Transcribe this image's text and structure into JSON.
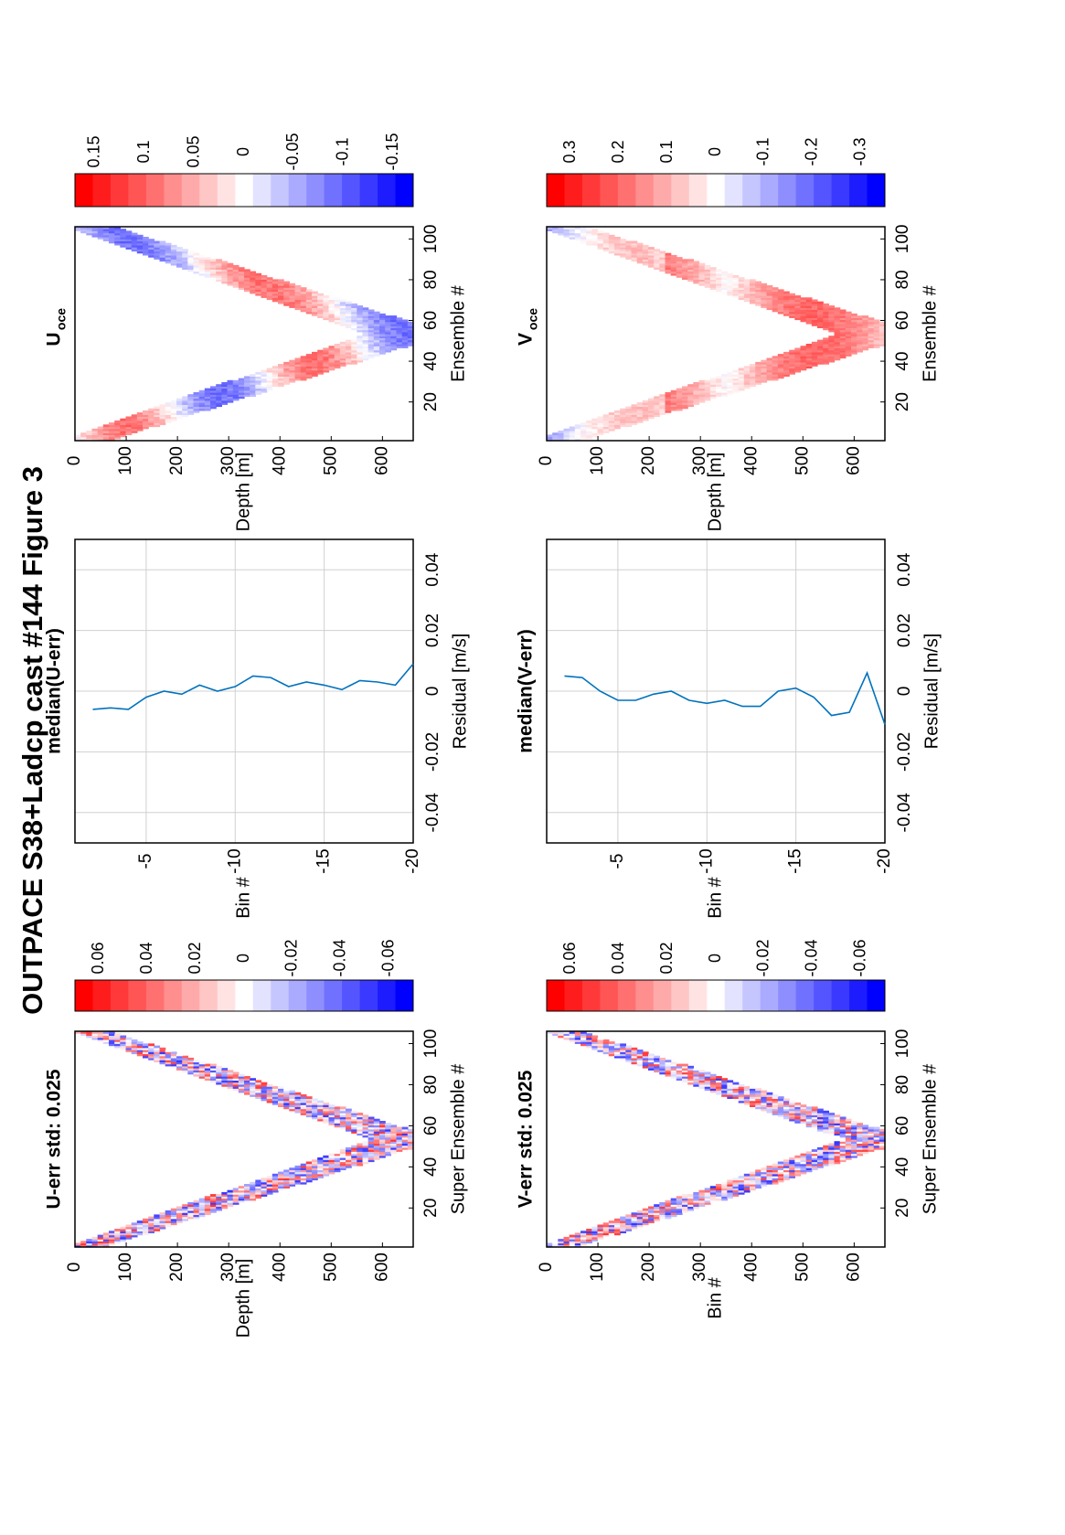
{
  "figure": {
    "title": "OUTPACE S38+Ladcp cast #144  Figure 3"
  },
  "chart_data": [
    {
      "id": "u-err",
      "type": "heatmap",
      "title": "U-err std: 0.025",
      "xlabel": "Super Ensemble #",
      "ylabel": "Depth [m]",
      "xlim": [
        1,
        106
      ],
      "ylim": [
        0,
        660
      ],
      "xticks": [
        "20",
        "40",
        "60",
        "80",
        "100"
      ],
      "yticks": [
        "0",
        "100",
        "200",
        "300",
        "400",
        "500",
        "600"
      ],
      "colorbar": {
        "range": [
          -0.07,
          0.07
        ],
        "ticks": [
          "0.06",
          "0.04",
          "0.02",
          "0",
          "-0.02",
          "-0.04",
          "-0.06"
        ],
        "colormap": "red-white-blue"
      },
      "profile": {
        "turn_ensemble": 53,
        "max_depth": 640,
        "band_width": 130
      }
    },
    {
      "id": "median-u-err",
      "type": "line",
      "title": "median(U-err)",
      "xlabel": "Bin #",
      "ylabel": "Residual [m/s]",
      "xlim": [
        -1,
        -20
      ],
      "ylim": [
        -0.05,
        0.05
      ],
      "xticks": [
        "-5",
        "-10",
        "-15",
        "-20"
      ],
      "yticks": [
        "-0.04",
        "-0.02",
        "0",
        "0.02",
        "0.04"
      ],
      "grid": true,
      "color": "#0072bd",
      "x": [
        -2,
        -3,
        -4,
        -5,
        -6,
        -7,
        -8,
        -9,
        -10,
        -11,
        -12,
        -13,
        -14,
        -15,
        -16,
        -17,
        -18,
        -19,
        -20
      ],
      "y": [
        -0.006,
        -0.0055,
        -0.006,
        -0.002,
        0,
        -0.001,
        0.002,
        0,
        0.0015,
        0.005,
        0.0045,
        0.0015,
        0.003,
        0.002,
        0.0005,
        0.0035,
        0.003,
        0.002,
        0.009
      ]
    },
    {
      "id": "u-oce",
      "type": "heatmap",
      "title": "U",
      "title_subscript": "oce",
      "xlabel": "Ensemble #",
      "ylabel": "Depth [m]",
      "xlim": [
        1,
        106
      ],
      "ylim": [
        0,
        660
      ],
      "xticks": [
        "20",
        "40",
        "60",
        "80",
        "100"
      ],
      "yticks": [
        "0",
        "100",
        "200",
        "300",
        "400",
        "500",
        "600"
      ],
      "colorbar": {
        "range": [
          -0.17,
          0.17
        ],
        "ticks": [
          "0.15",
          "0.1",
          "0.05",
          "0",
          "-0.05",
          "-0.1",
          "-0.15"
        ],
        "colormap": "red-white-blue"
      },
      "profile": {
        "turn_ensemble": 53,
        "max_depth": 640,
        "band_width": 160
      }
    },
    {
      "id": "v-err",
      "type": "heatmap",
      "title": "V-err std: 0.025",
      "xlabel": "Super Ensemble #",
      "ylabel": "Bin #",
      "xlim": [
        1,
        106
      ],
      "ylim": [
        0,
        660
      ],
      "xticks": [
        "20",
        "40",
        "60",
        "80",
        "100"
      ],
      "yticks": [
        "0",
        "100",
        "200",
        "300",
        "400",
        "500",
        "600"
      ],
      "colorbar": {
        "range": [
          -0.07,
          0.07
        ],
        "ticks": [
          "0.06",
          "0.04",
          "0.02",
          "0",
          "-0.02",
          "-0.04",
          "-0.06"
        ],
        "colormap": "red-white-blue"
      },
      "profile": {
        "turn_ensemble": 53,
        "max_depth": 640,
        "band_width": 130
      }
    },
    {
      "id": "median-v-err",
      "type": "line",
      "title": "median(V-err)",
      "xlabel": "Bin #",
      "ylabel": "Residual [m/s]",
      "xlim": [
        -1,
        -20
      ],
      "ylim": [
        -0.05,
        0.05
      ],
      "xticks": [
        "-5",
        "-10",
        "-15",
        "-20"
      ],
      "yticks": [
        "-0.04",
        "-0.02",
        "0",
        "0.02",
        "0.04"
      ],
      "grid": true,
      "color": "#0072bd",
      "x": [
        -2,
        -3,
        -4,
        -5,
        -6,
        -7,
        -8,
        -9,
        -10,
        -11,
        -12,
        -13,
        -14,
        -15,
        -16,
        -17,
        -18,
        -19,
        -20
      ],
      "y": [
        0.005,
        0.0045,
        0,
        -0.003,
        -0.003,
        -0.001,
        0,
        -0.003,
        -0.004,
        -0.003,
        -0.005,
        -0.005,
        0,
        0.001,
        -0.002,
        -0.008,
        -0.007,
        0.006,
        -0.011
      ]
    },
    {
      "id": "v-oce",
      "type": "heatmap",
      "title": "V",
      "title_subscript": "oce",
      "xlabel": "Ensemble #",
      "ylabel": "Depth [m]",
      "xlim": [
        1,
        106
      ],
      "ylim": [
        0,
        660
      ],
      "xticks": [
        "20",
        "40",
        "60",
        "80",
        "100"
      ],
      "yticks": [
        "0",
        "100",
        "200",
        "300",
        "400",
        "500",
        "600"
      ],
      "colorbar": {
        "range": [
          -0.35,
          0.35
        ],
        "ticks": [
          "0.3",
          "0.2",
          "0.1",
          "0",
          "-0.1",
          "-0.2",
          "-0.3"
        ],
        "colormap": "red-white-blue"
      },
      "profile": {
        "turn_ensemble": 53,
        "max_depth": 640,
        "band_width": 160
      }
    }
  ]
}
